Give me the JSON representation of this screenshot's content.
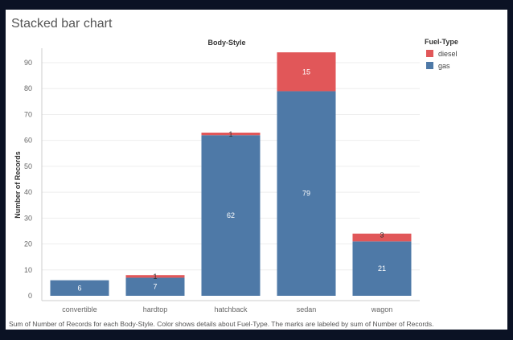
{
  "colors": {
    "gas": "#4e79a7",
    "diesel": "#e15759",
    "grid": "#eeeeee",
    "axis": "#cccccc",
    "label_on_gas": "#ffffff",
    "label_on_diesel": "#ffffff",
    "label_thin": "#333333"
  },
  "chart_data": {
    "type": "bar",
    "stacked": true,
    "title": "Stacked bar chart",
    "column_header": "Body-Style",
    "ylabel": "Number of Records",
    "xlabel": "",
    "ylim": [
      0,
      95
    ],
    "yticks": [
      0,
      10,
      20,
      30,
      40,
      50,
      60,
      70,
      80,
      90
    ],
    "grid": true,
    "categories": [
      "convertible",
      "hardtop",
      "hatchback",
      "sedan",
      "wagon"
    ],
    "series": [
      {
        "name": "gas",
        "values": [
          6,
          7,
          62,
          79,
          21
        ]
      },
      {
        "name": "diesel",
        "values": [
          0,
          1,
          1,
          15,
          3
        ]
      }
    ],
    "legend": {
      "title": "Fuel-Type",
      "placement": "top-right",
      "entries": [
        "diesel",
        "gas"
      ]
    },
    "footnote": "Sum of Number of Records for each Body-Style.  Color shows details about Fuel-Type.  The marks are labeled by sum of Number of Records."
  }
}
